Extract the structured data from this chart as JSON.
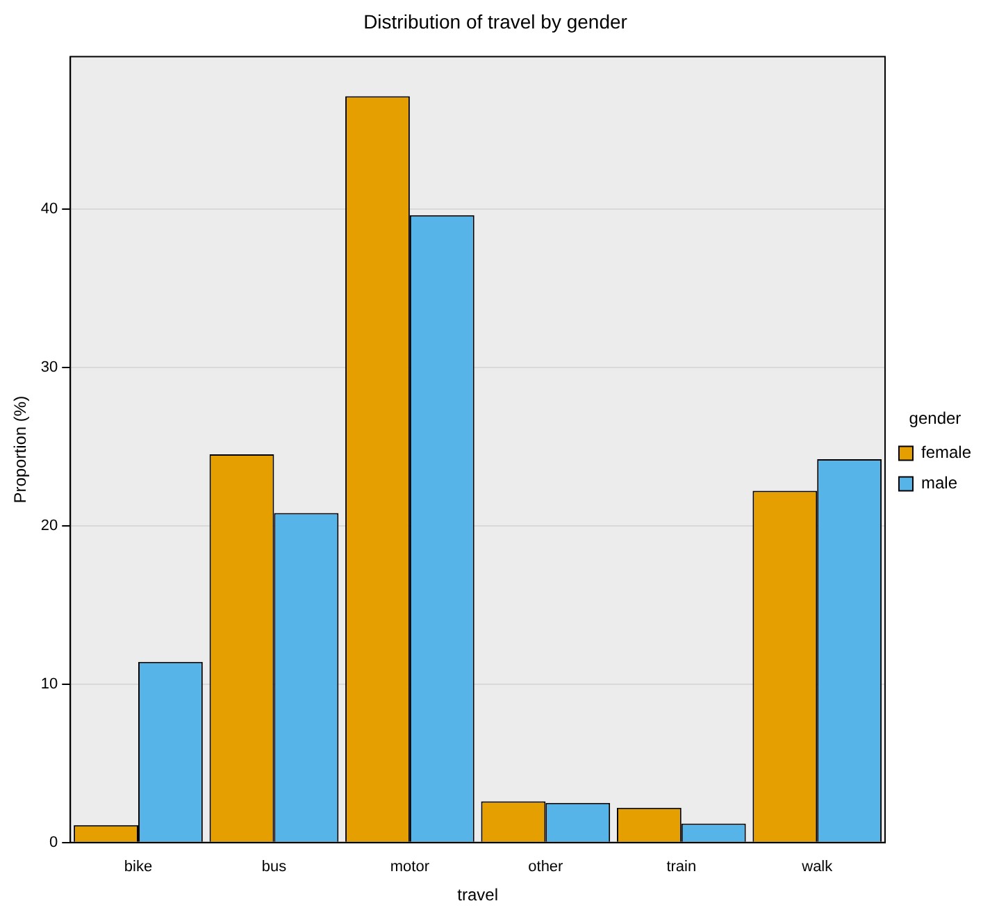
{
  "chart_data": {
    "type": "bar",
    "title": "Distribution of travel by gender",
    "xlabel": "travel",
    "ylabel": "Proportion (%)",
    "legend_title": "gender",
    "categories": [
      "bike",
      "bus",
      "motor",
      "other",
      "train",
      "walk"
    ],
    "series": [
      {
        "name": "female",
        "color": "#e69f00",
        "values": [
          1.1,
          24.5,
          47.1,
          2.6,
          2.2,
          22.2
        ]
      },
      {
        "name": "male",
        "color": "#56b4e9",
        "values": [
          11.4,
          20.8,
          39.6,
          2.5,
          1.2,
          24.2
        ]
      }
    ],
    "ylim": [
      0,
      49.6
    ],
    "yticks": [
      0,
      10,
      20,
      30,
      40
    ],
    "grid": "y",
    "legend": "right"
  }
}
